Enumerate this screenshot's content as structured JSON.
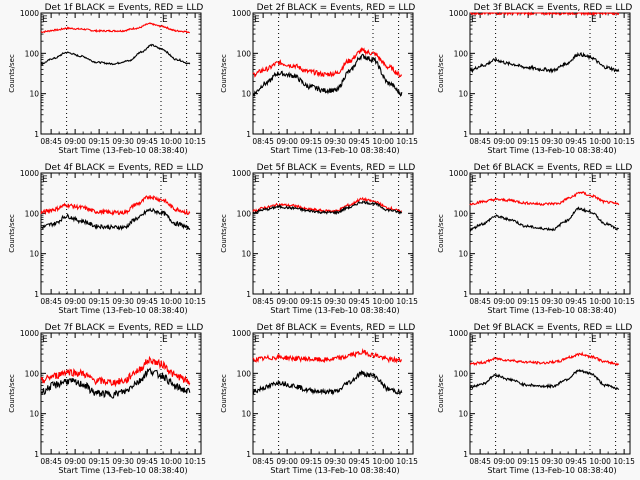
{
  "chart_data": {
    "type": "line",
    "grid_layout": "3x3",
    "background": "#f8f8f8",
    "series_colors": {
      "events": "#000000",
      "lld": "#ff0000"
    },
    "common": {
      "xlabel": "Start Time (13-Feb-10 08:38:40)",
      "ylabel": "Counts/sec",
      "yscale": "log",
      "ylim": [
        1,
        1000
      ],
      "ytick_labels": [
        "1",
        "10",
        "100",
        "1000"
      ],
      "xtick_labels": [
        "08:45",
        "09:00",
        "09:15",
        "09:30",
        "09:45",
        "10:00",
        "10:15"
      ],
      "xlim_minutes": [
        0,
        100
      ],
      "marker_label": "E",
      "dotted_lines_minutes": [
        16,
        75,
        91
      ]
    },
    "panels": [
      {
        "title": "Det 1f BLACK = Events, RED = LLD",
        "events": [
          [
            0,
            55
          ],
          [
            8,
            75
          ],
          [
            16,
            105
          ],
          [
            25,
            85
          ],
          [
            35,
            60
          ],
          [
            45,
            55
          ],
          [
            55,
            65
          ],
          [
            63,
            110
          ],
          [
            69,
            160
          ],
          [
            75,
            130
          ],
          [
            85,
            70
          ],
          [
            93,
            55
          ]
        ],
        "lld": [
          [
            0,
            340
          ],
          [
            10,
            380
          ],
          [
            16,
            420
          ],
          [
            25,
            400
          ],
          [
            35,
            360
          ],
          [
            50,
            360
          ],
          [
            60,
            420
          ],
          [
            68,
            540
          ],
          [
            75,
            470
          ],
          [
            85,
            360
          ],
          [
            93,
            340
          ]
        ],
        "noise": 0.02
      },
      {
        "title": "Det 2f BLACK = Events, RED = LLD",
        "events": [
          [
            0,
            10
          ],
          [
            8,
            18
          ],
          [
            16,
            32
          ],
          [
            25,
            28
          ],
          [
            35,
            15
          ],
          [
            45,
            12
          ],
          [
            52,
            12
          ],
          [
            60,
            35
          ],
          [
            68,
            85
          ],
          [
            75,
            70
          ],
          [
            85,
            18
          ],
          [
            93,
            10
          ]
        ],
        "lld": [
          [
            0,
            30
          ],
          [
            8,
            40
          ],
          [
            16,
            58
          ],
          [
            25,
            50
          ],
          [
            35,
            35
          ],
          [
            45,
            30
          ],
          [
            52,
            32
          ],
          [
            60,
            65
          ],
          [
            68,
            115
          ],
          [
            75,
            100
          ],
          [
            85,
            45
          ],
          [
            93,
            28
          ]
        ],
        "noise": 0.06
      },
      {
        "title": "Det 3f BLACK = Events, RED = LLD",
        "events": [
          [
            0,
            38
          ],
          [
            8,
            50
          ],
          [
            16,
            68
          ],
          [
            25,
            55
          ],
          [
            35,
            45
          ],
          [
            45,
            40
          ],
          [
            52,
            38
          ],
          [
            60,
            55
          ],
          [
            68,
            95
          ],
          [
            75,
            80
          ],
          [
            85,
            45
          ],
          [
            93,
            37
          ]
        ],
        "lld": [
          [
            0,
            1000
          ],
          [
            93,
            1000
          ]
        ],
        "noise": 0.04
      },
      {
        "title": "Det 4f BLACK = Events, RED = LLD",
        "events": [
          [
            0,
            45
          ],
          [
            8,
            55
          ],
          [
            16,
            85
          ],
          [
            25,
            65
          ],
          [
            35,
            48
          ],
          [
            45,
            45
          ],
          [
            52,
            45
          ],
          [
            60,
            75
          ],
          [
            68,
            120
          ],
          [
            75,
            105
          ],
          [
            85,
            55
          ],
          [
            93,
            43
          ]
        ],
        "lld": [
          [
            0,
            105
          ],
          [
            8,
            125
          ],
          [
            16,
            160
          ],
          [
            25,
            140
          ],
          [
            35,
            110
          ],
          [
            45,
            105
          ],
          [
            52,
            105
          ],
          [
            60,
            170
          ],
          [
            68,
            260
          ],
          [
            75,
            220
          ],
          [
            85,
            125
          ],
          [
            93,
            100
          ]
        ],
        "noise": 0.05
      },
      {
        "title": "Det 5f BLACK = Events, RED = LLD",
        "events": [
          [
            0,
            105
          ],
          [
            8,
            125
          ],
          [
            16,
            145
          ],
          [
            25,
            135
          ],
          [
            35,
            115
          ],
          [
            45,
            105
          ],
          [
            52,
            105
          ],
          [
            60,
            140
          ],
          [
            68,
            190
          ],
          [
            75,
            175
          ],
          [
            85,
            120
          ],
          [
            93,
            105
          ]
        ],
        "lld": [
          [
            0,
            115
          ],
          [
            8,
            140
          ],
          [
            16,
            165
          ],
          [
            25,
            155
          ],
          [
            35,
            125
          ],
          [
            45,
            115
          ],
          [
            52,
            115
          ],
          [
            60,
            160
          ],
          [
            68,
            225
          ],
          [
            75,
            200
          ],
          [
            85,
            135
          ],
          [
            93,
            110
          ]
        ],
        "noise": 0.03
      },
      {
        "title": "Det 6f BLACK = Events, RED = LLD",
        "events": [
          [
            0,
            40
          ],
          [
            8,
            55
          ],
          [
            16,
            85
          ],
          [
            25,
            70
          ],
          [
            35,
            48
          ],
          [
            45,
            42
          ],
          [
            52,
            40
          ],
          [
            60,
            65
          ],
          [
            68,
            130
          ],
          [
            75,
            110
          ],
          [
            85,
            55
          ],
          [
            93,
            40
          ]
        ],
        "lld": [
          [
            0,
            170
          ],
          [
            8,
            195
          ],
          [
            16,
            220
          ],
          [
            25,
            210
          ],
          [
            35,
            180
          ],
          [
            45,
            170
          ],
          [
            55,
            175
          ],
          [
            62,
            240
          ],
          [
            69,
            330
          ],
          [
            76,
            270
          ],
          [
            85,
            190
          ],
          [
            93,
            170
          ]
        ],
        "noise": 0.03
      },
      {
        "title": "Det 7f BLACK = Events, RED = LLD",
        "events": [
          [
            0,
            35
          ],
          [
            8,
            50
          ],
          [
            16,
            65
          ],
          [
            25,
            55
          ],
          [
            35,
            32
          ],
          [
            45,
            30
          ],
          [
            52,
            35
          ],
          [
            60,
            60
          ],
          [
            68,
            115
          ],
          [
            75,
            90
          ],
          [
            85,
            45
          ],
          [
            93,
            35
          ]
        ],
        "lld": [
          [
            0,
            65
          ],
          [
            8,
            85
          ],
          [
            16,
            110
          ],
          [
            25,
            100
          ],
          [
            35,
            65
          ],
          [
            45,
            60
          ],
          [
            52,
            65
          ],
          [
            60,
            115
          ],
          [
            68,
            210
          ],
          [
            75,
            170
          ],
          [
            85,
            85
          ],
          [
            93,
            60
          ]
        ],
        "noise": 0.09
      },
      {
        "title": "Det 8f BLACK = Events, RED = LLD",
        "events": [
          [
            0,
            35
          ],
          [
            8,
            45
          ],
          [
            16,
            60
          ],
          [
            25,
            50
          ],
          [
            35,
            38
          ],
          [
            45,
            35
          ],
          [
            52,
            35
          ],
          [
            60,
            60
          ],
          [
            68,
            100
          ],
          [
            75,
            88
          ],
          [
            85,
            40
          ],
          [
            93,
            33
          ]
        ],
        "lld": [
          [
            0,
            220
          ],
          [
            16,
            250
          ],
          [
            30,
            230
          ],
          [
            45,
            215
          ],
          [
            55,
            240
          ],
          [
            62,
            290
          ],
          [
            69,
            330
          ],
          [
            76,
            280
          ],
          [
            85,
            220
          ],
          [
            93,
            210
          ]
        ],
        "noise": 0.06
      },
      {
        "title": "Det 9f BLACK = Events, RED = LLD",
        "events": [
          [
            0,
            45
          ],
          [
            8,
            55
          ],
          [
            16,
            90
          ],
          [
            25,
            70
          ],
          [
            35,
            52
          ],
          [
            45,
            48
          ],
          [
            52,
            48
          ],
          [
            60,
            70
          ],
          [
            68,
            115
          ],
          [
            75,
            100
          ],
          [
            85,
            50
          ],
          [
            93,
            42
          ]
        ],
        "lld": [
          [
            0,
            170
          ],
          [
            8,
            185
          ],
          [
            16,
            230
          ],
          [
            25,
            210
          ],
          [
            35,
            190
          ],
          [
            45,
            180
          ],
          [
            55,
            195
          ],
          [
            62,
            250
          ],
          [
            69,
            300
          ],
          [
            76,
            260
          ],
          [
            85,
            190
          ],
          [
            93,
            170
          ]
        ],
        "noise": 0.03
      }
    ]
  }
}
